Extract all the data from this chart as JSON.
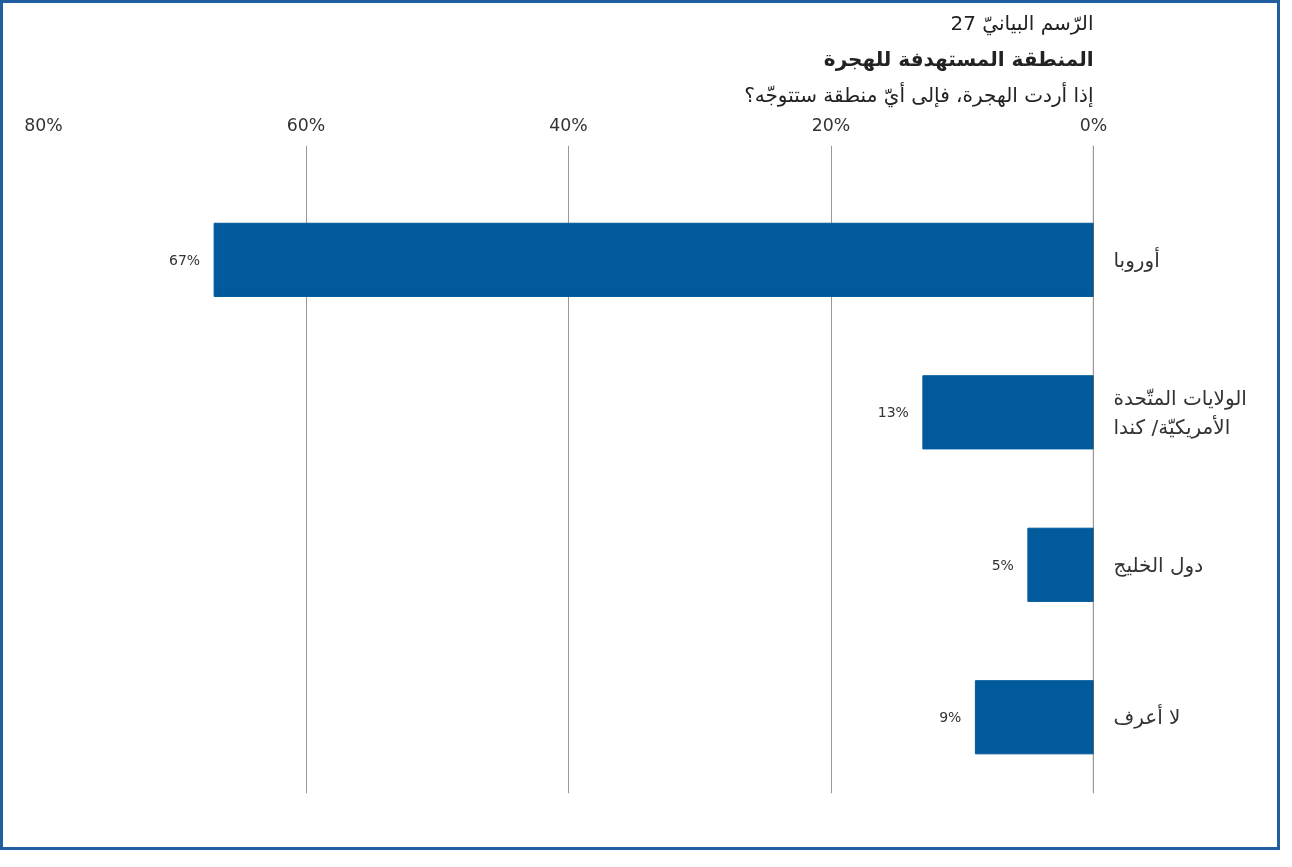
{
  "chart_data": {
    "type": "bar",
    "orientation": "horizontal",
    "title": "الرّسم البيانيّ 27",
    "subtitle": "المنطقة المستهدفة للهجرة",
    "annotations": [
      "إذا أردت الهجرة، فإلى أيّ منطقة ستتوجّه؟"
    ],
    "categories": [
      "أوروبا",
      "الولايات المتّحدة\nالأمريكيّة/ كندا",
      "دول الخليج",
      "لا أعرف"
    ],
    "values": [
      67,
      13,
      5,
      9
    ],
    "value_labels": [
      "67%",
      "13%",
      "5%",
      "9%"
    ],
    "color": "#005a9c",
    "xlim": [
      80,
      0
    ],
    "xticks": [
      {
        "value": 80,
        "label": "80%"
      },
      {
        "value": 60,
        "label": "60%"
      },
      {
        "value": 40,
        "label": "40%"
      },
      {
        "value": 20,
        "label": "20%"
      },
      {
        "value": 0,
        "label": "0%"
      }
    ],
    "grid": "x"
  }
}
